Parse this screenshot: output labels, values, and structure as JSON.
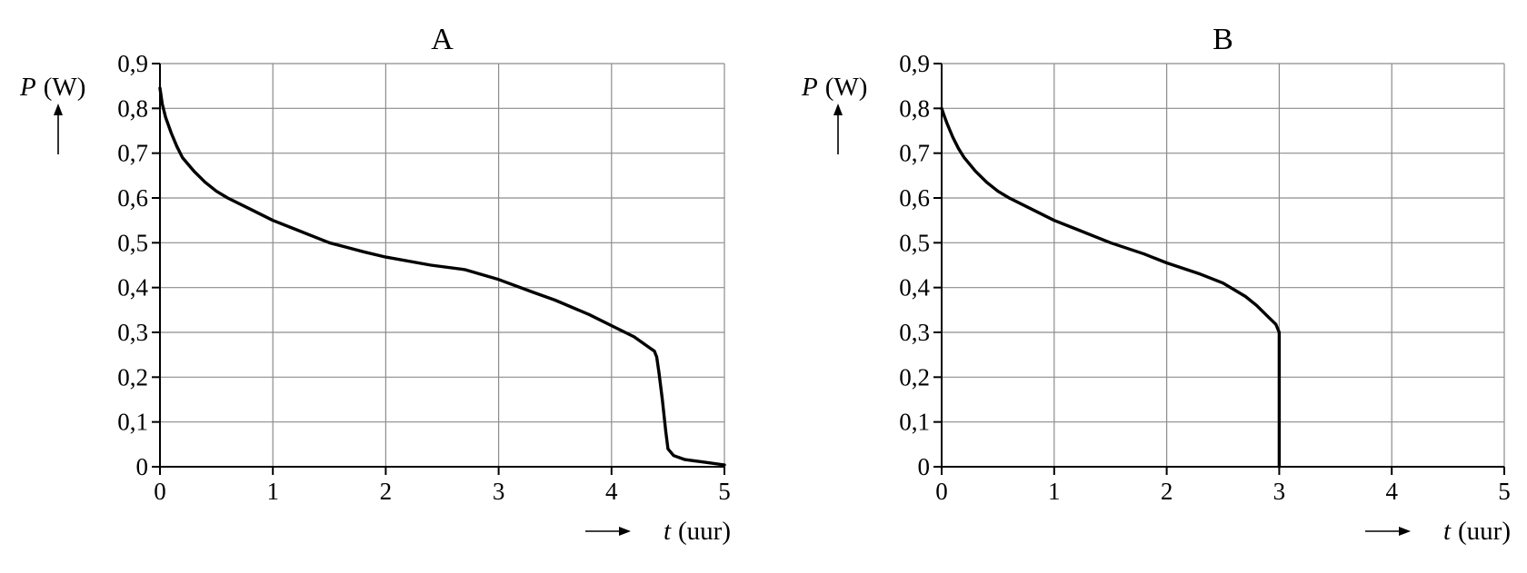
{
  "chart_data": [
    {
      "type": "line",
      "title": "A",
      "ylabel": "P (W)",
      "ylabel_var": "P",
      "ylabel_unit": "(W)",
      "xlabel": "t (uur)",
      "xlabel_var": "t",
      "xlabel_unit": "(uur)",
      "xlim": [
        0,
        5
      ],
      "ylim": [
        0,
        0.9
      ],
      "grid": true,
      "x_ticks": [
        "0",
        "1",
        "2",
        "3",
        "4",
        "5"
      ],
      "y_ticks": [
        "0",
        "0,1",
        "0,2",
        "0,3",
        "0,4",
        "0,5",
        "0,6",
        "0,7",
        "0,8",
        "0,9"
      ],
      "series": [
        {
          "color": "#000000",
          "points": [
            [
              0.0,
              0.845
            ],
            [
              0.02,
              0.81
            ],
            [
              0.05,
              0.78
            ],
            [
              0.1,
              0.745
            ],
            [
              0.15,
              0.715
            ],
            [
              0.2,
              0.69
            ],
            [
              0.3,
              0.66
            ],
            [
              0.4,
              0.635
            ],
            [
              0.5,
              0.615
            ],
            [
              0.6,
              0.6
            ],
            [
              0.8,
              0.575
            ],
            [
              1.0,
              0.55
            ],
            [
              1.2,
              0.53
            ],
            [
              1.5,
              0.5
            ],
            [
              1.8,
              0.48
            ],
            [
              2.0,
              0.468
            ],
            [
              2.4,
              0.45
            ],
            [
              2.7,
              0.44
            ],
            [
              3.0,
              0.418
            ],
            [
              3.3,
              0.39
            ],
            [
              3.5,
              0.372
            ],
            [
              3.8,
              0.34
            ],
            [
              4.0,
              0.315
            ],
            [
              4.2,
              0.29
            ],
            [
              4.3,
              0.272
            ],
            [
              4.38,
              0.258
            ],
            [
              4.4,
              0.245
            ],
            [
              4.42,
              0.21
            ],
            [
              4.45,
              0.15
            ],
            [
              4.48,
              0.08
            ],
            [
              4.5,
              0.04
            ],
            [
              4.55,
              0.025
            ],
            [
              4.65,
              0.016
            ],
            [
              4.8,
              0.011
            ],
            [
              5.0,
              0.004
            ]
          ]
        }
      ]
    },
    {
      "type": "line",
      "title": "B",
      "ylabel": "P (W)",
      "ylabel_var": "P",
      "ylabel_unit": "(W)",
      "xlabel": "t (uur)",
      "xlabel_var": "t",
      "xlabel_unit": "(uur)",
      "xlim": [
        0,
        5
      ],
      "ylim": [
        0,
        0.9
      ],
      "grid": true,
      "x_ticks": [
        "0",
        "1",
        "2",
        "3",
        "4",
        "5"
      ],
      "y_ticks": [
        "0",
        "0,1",
        "0,2",
        "0,3",
        "0,4",
        "0,5",
        "0,6",
        "0,7",
        "0,8",
        "0,9"
      ],
      "series": [
        {
          "color": "#000000",
          "points": [
            [
              0.0,
              0.8
            ],
            [
              0.02,
              0.785
            ],
            [
              0.05,
              0.765
            ],
            [
              0.1,
              0.735
            ],
            [
              0.15,
              0.71
            ],
            [
              0.2,
              0.69
            ],
            [
              0.3,
              0.66
            ],
            [
              0.4,
              0.635
            ],
            [
              0.5,
              0.615
            ],
            [
              0.6,
              0.6
            ],
            [
              0.8,
              0.575
            ],
            [
              1.0,
              0.55
            ],
            [
              1.2,
              0.53
            ],
            [
              1.5,
              0.5
            ],
            [
              1.8,
              0.475
            ],
            [
              2.0,
              0.455
            ],
            [
              2.3,
              0.43
            ],
            [
              2.5,
              0.41
            ],
            [
              2.7,
              0.38
            ],
            [
              2.8,
              0.36
            ],
            [
              2.9,
              0.335
            ],
            [
              2.97,
              0.318
            ],
            [
              3.0,
              0.3
            ],
            [
              3.0,
              0.0
            ]
          ]
        }
      ]
    }
  ]
}
